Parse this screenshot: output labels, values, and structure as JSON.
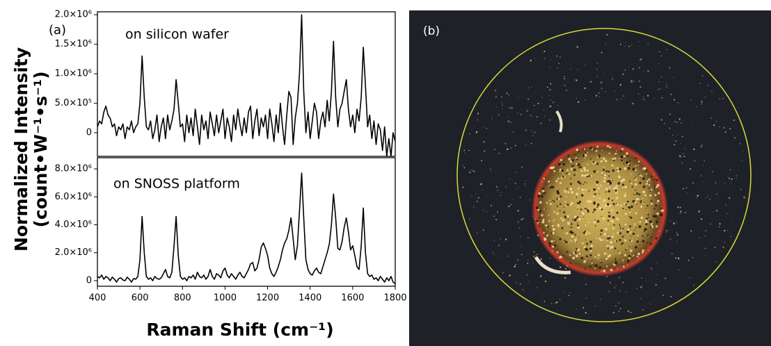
{
  "chart_data": [
    {
      "type": "line",
      "panel_label": "(a)",
      "annotation": "on silicon wafer",
      "ylabel": [
        "Normalized Intensity",
        "(count•W⁻¹•s⁻¹)"
      ],
      "color": "#000000",
      "xlim": [
        400,
        1800
      ],
      "ylim": [
        -400000,
        2050000
      ],
      "yticks": [
        0,
        {
          "value": 500000,
          "label": "5.0×10⁵"
        },
        {
          "value": 1000000,
          "label": "1.0×10⁶"
        },
        {
          "value": 1500000,
          "label": "1.5×10⁶"
        },
        {
          "value": 2000000,
          "label": "2.0×10⁶"
        }
      ],
      "x": [
        400,
        410,
        420,
        430,
        440,
        450,
        460,
        470,
        480,
        490,
        500,
        510,
        520,
        530,
        540,
        550,
        560,
        570,
        580,
        590,
        600,
        610,
        620,
        630,
        640,
        650,
        660,
        670,
        680,
        690,
        700,
        710,
        720,
        730,
        740,
        750,
        760,
        770,
        780,
        790,
        800,
        810,
        820,
        830,
        840,
        850,
        860,
        870,
        880,
        890,
        900,
        910,
        920,
        930,
        940,
        950,
        960,
        970,
        980,
        990,
        1000,
        1010,
        1020,
        1030,
        1040,
        1050,
        1060,
        1070,
        1080,
        1090,
        1100,
        1110,
        1120,
        1130,
        1140,
        1150,
        1160,
        1170,
        1180,
        1190,
        1200,
        1210,
        1220,
        1230,
        1240,
        1250,
        1260,
        1270,
        1280,
        1290,
        1300,
        1310,
        1320,
        1330,
        1340,
        1350,
        1360,
        1370,
        1380,
        1390,
        1400,
        1410,
        1420,
        1430,
        1440,
        1450,
        1460,
        1470,
        1480,
        1490,
        1500,
        1510,
        1520,
        1530,
        1540,
        1550,
        1560,
        1570,
        1580,
        1590,
        1600,
        1610,
        1620,
        1630,
        1640,
        1650,
        1660,
        1670,
        1680,
        1690,
        1700,
        1710,
        1720,
        1730,
        1740,
        1750,
        1760,
        1770,
        1780,
        1790,
        1800
      ],
      "values": [
        100000,
        200000,
        150000,
        350000,
        450000,
        300000,
        250000,
        100000,
        150000,
        -50000,
        100000,
        50000,
        150000,
        -100000,
        100000,
        50000,
        200000,
        0,
        100000,
        150000,
        500000,
        1300000,
        600000,
        100000,
        50000,
        200000,
        -100000,
        50000,
        300000,
        -150000,
        100000,
        250000,
        -100000,
        300000,
        50000,
        200000,
        400000,
        900000,
        500000,
        100000,
        150000,
        -150000,
        300000,
        0,
        250000,
        -50000,
        400000,
        100000,
        -200000,
        300000,
        50000,
        200000,
        -100000,
        350000,
        150000,
        -50000,
        300000,
        0,
        200000,
        400000,
        -100000,
        250000,
        100000,
        -150000,
        300000,
        50000,
        400000,
        150000,
        -50000,
        250000,
        0,
        350000,
        450000,
        -100000,
        200000,
        400000,
        -50000,
        250000,
        100000,
        300000,
        -100000,
        400000,
        150000,
        -150000,
        300000,
        0,
        500000,
        100000,
        -200000,
        300000,
        700000,
        600000,
        -200000,
        250000,
        500000,
        1000000,
        2000000,
        700000,
        0,
        350000,
        -100000,
        200000,
        500000,
        350000,
        -100000,
        200000,
        350000,
        100000,
        550000,
        200000,
        700000,
        1550000,
        600000,
        100000,
        400000,
        500000,
        700000,
        900000,
        400000,
        100000,
        300000,
        0,
        400000,
        200000,
        600000,
        1450000,
        800000,
        100000,
        300000,
        -100000,
        200000,
        -200000,
        150000,
        50000,
        -300000,
        100000,
        -400000,
        -100000,
        -400000,
        0,
        -150000
      ]
    },
    {
      "type": "line",
      "annotation": "on SNOSS platform",
      "xlabel": "Raman Shift (cm⁻¹)",
      "color": "#000000",
      "xlim": [
        400,
        1800
      ],
      "xticks": [
        400,
        600,
        800,
        1000,
        1200,
        1400,
        1600,
        1800
      ],
      "ylim": [
        -400000,
        8800000
      ],
      "yticks": [
        0,
        {
          "value": 2000000,
          "label": "2.0×10⁶"
        },
        {
          "value": 4000000,
          "label": "4.0×10⁶"
        },
        {
          "value": 6000000,
          "label": "6.0×10⁶"
        },
        {
          "value": 8000000,
          "label": "8.0×10⁶"
        }
      ],
      "x": [
        400,
        410,
        420,
        430,
        440,
        450,
        460,
        470,
        480,
        490,
        500,
        510,
        520,
        530,
        540,
        550,
        560,
        570,
        580,
        590,
        600,
        610,
        620,
        630,
        640,
        650,
        660,
        670,
        680,
        690,
        700,
        710,
        720,
        730,
        740,
        750,
        760,
        770,
        780,
        790,
        800,
        810,
        820,
        830,
        840,
        850,
        860,
        870,
        880,
        890,
        900,
        910,
        920,
        930,
        940,
        950,
        960,
        970,
        980,
        990,
        1000,
        1010,
        1020,
        1030,
        1040,
        1050,
        1060,
        1070,
        1080,
        1090,
        1100,
        1110,
        1120,
        1130,
        1140,
        1150,
        1160,
        1170,
        1180,
        1190,
        1200,
        1210,
        1220,
        1230,
        1240,
        1250,
        1260,
        1270,
        1280,
        1290,
        1300,
        1310,
        1320,
        1330,
        1340,
        1350,
        1360,
        1370,
        1380,
        1390,
        1400,
        1410,
        1420,
        1430,
        1440,
        1450,
        1460,
        1470,
        1480,
        1490,
        1500,
        1510,
        1520,
        1530,
        1540,
        1550,
        1560,
        1570,
        1580,
        1590,
        1600,
        1610,
        1620,
        1630,
        1640,
        1650,
        1660,
        1670,
        1680,
        1690,
        1700,
        1710,
        1720,
        1730,
        1740,
        1750,
        1760,
        1770,
        1780,
        1790,
        1800
      ],
      "values": [
        300000,
        200000,
        400000,
        100000,
        300000,
        200000,
        0,
        250000,
        100000,
        -100000,
        150000,
        200000,
        50000,
        0,
        250000,
        100000,
        -100000,
        150000,
        100000,
        300000,
        1500000,
        4600000,
        2000000,
        300000,
        100000,
        200000,
        0,
        300000,
        150000,
        100000,
        200000,
        500000,
        800000,
        300000,
        200000,
        600000,
        2500000,
        4600000,
        1800000,
        300000,
        100000,
        200000,
        0,
        300000,
        200000,
        400000,
        100000,
        600000,
        300000,
        200000,
        400000,
        100000,
        300000,
        800000,
        300000,
        100000,
        500000,
        400000,
        200000,
        700000,
        900000,
        400000,
        200000,
        500000,
        300000,
        100000,
        400000,
        600000,
        300000,
        200000,
        500000,
        800000,
        1200000,
        1300000,
        700000,
        900000,
        1500000,
        2400000,
        2700000,
        2300000,
        1800000,
        900000,
        500000,
        300000,
        600000,
        1000000,
        1500000,
        2200000,
        2700000,
        3000000,
        3600000,
        4500000,
        3000000,
        1500000,
        2500000,
        5000000,
        7700000,
        4500000,
        1500000,
        800000,
        500000,
        400000,
        700000,
        900000,
        600000,
        500000,
        1000000,
        1500000,
        2000000,
        2600000,
        4000000,
        6200000,
        4500000,
        2300000,
        2200000,
        2800000,
        3800000,
        4500000,
        3500000,
        2200000,
        2500000,
        1800000,
        1000000,
        800000,
        2500000,
        5200000,
        2000000,
        500000,
        300000,
        400000,
        100000,
        200000,
        0,
        300000,
        100000,
        -100000,
        200000,
        0,
        300000,
        -100000,
        -200000
      ]
    }
  ],
  "image": {
    "panel_label": "(b)"
  }
}
